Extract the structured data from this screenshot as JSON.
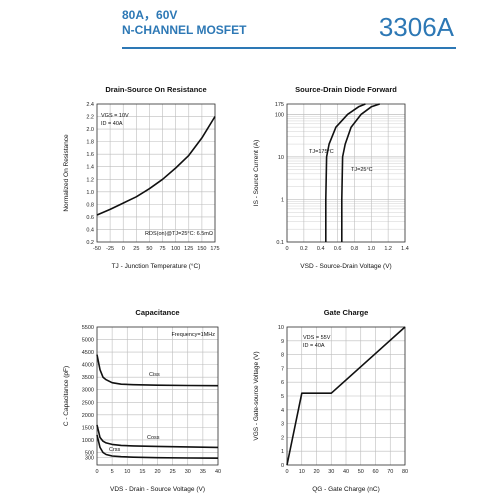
{
  "header": {
    "rating": "80A，60V",
    "type": "N-CHANNEL MOSFET",
    "part_number": "3306A",
    "accent": "#2d78b5"
  },
  "chart_data": [
    {
      "type": "line",
      "title": "Drain-Source On Resistance",
      "xlabel": "TJ - Junction Temperature (°C)",
      "ylabel": "Normalized On Resistance",
      "xlim": [
        -50,
        175
      ],
      "ylim": [
        0.2,
        2.4
      ],
      "xticks": [
        "-50",
        "-25",
        "0",
        "25",
        "50",
        "75",
        "100",
        "125",
        "150",
        "175"
      ],
      "yticks": [
        "0.2",
        "0.4",
        "0.6",
        "0.8",
        "1.0",
        "1.2",
        "1.4",
        "1.6",
        "1.8",
        "2.0",
        "2.2",
        "2.4"
      ],
      "annotations": [
        "VGS = 10V",
        "ID = 40A",
        "RDS(on)@TJ=25°C: 6.5mΩ"
      ],
      "series": [
        {
          "x": [
            -50,
            -25,
            0,
            25,
            50,
            75,
            100,
            125,
            150,
            175
          ],
          "y": [
            0.63,
            0.72,
            0.82,
            0.92,
            1.05,
            1.2,
            1.38,
            1.58,
            1.86,
            2.2
          ]
        }
      ]
    },
    {
      "type": "line",
      "title": "Source-Drain Diode Forward",
      "xlabel": "VSD - Source-Drain Voltage (V)",
      "ylabel": "IS - Source Current (A)",
      "xlim": [
        0,
        1.4
      ],
      "ylim": [
        0.1,
        175
      ],
      "yscale": "log",
      "xticks": [
        "0",
        "0.2",
        "0.4",
        "0.6",
        "0.8",
        "1.0",
        "1.2",
        "1.4"
      ],
      "yticks": [
        "0.1",
        "1",
        "10",
        "100",
        "175"
      ],
      "series": [
        {
          "name": "TJ=175°C",
          "x": [
            0.46,
            0.46,
            0.47,
            0.5,
            0.58,
            0.72,
            0.85,
            0.93
          ],
          "y": [
            0.1,
            1,
            10,
            20,
            50,
            100,
            150,
            175
          ]
        },
        {
          "name": "TJ=25°C",
          "x": [
            0.65,
            0.65,
            0.66,
            0.69,
            0.76,
            0.88,
            1.0,
            1.1
          ],
          "y": [
            0.1,
            1,
            10,
            20,
            50,
            100,
            150,
            175
          ]
        }
      ]
    },
    {
      "type": "line",
      "title": "Capacitance",
      "xlabel": "VDS - Drain - Source Voltage (V)",
      "ylabel": "C - Capacitance (pF)",
      "xlim": [
        0,
        40
      ],
      "ylim": [
        0,
        5500
      ],
      "xticks": [
        "0",
        "5",
        "10",
        "15",
        "20",
        "25",
        "30",
        "35",
        "40"
      ],
      "yticks": [
        "300",
        "500",
        "1000",
        "1500",
        "2000",
        "2500",
        "3000",
        "3500",
        "4000",
        "4500",
        "5000",
        "5500"
      ],
      "annotations": [
        "Frequency=1MHz"
      ],
      "series": [
        {
          "name": "Ciss",
          "x": [
            0,
            1,
            2,
            3,
            5,
            8,
            12,
            20,
            30,
            40
          ],
          "y": [
            4400,
            3800,
            3500,
            3400,
            3280,
            3220,
            3200,
            3180,
            3170,
            3160
          ]
        },
        {
          "name": "Coss",
          "x": [
            0,
            1,
            2,
            3,
            5,
            8,
            12,
            20,
            30,
            40
          ],
          "y": [
            1600,
            1100,
            950,
            880,
            820,
            780,
            760,
            740,
            720,
            700
          ]
        },
        {
          "name": "Crss",
          "x": [
            0,
            1,
            2,
            3,
            5,
            8,
            12,
            20,
            30,
            40
          ],
          "y": [
            1200,
            700,
            500,
            420,
            360,
            330,
            310,
            290,
            280,
            270
          ]
        }
      ]
    },
    {
      "type": "line",
      "title": "Gate Charge",
      "xlabel": "QG - Gate Charge (nC)",
      "ylabel": "VGS - Gate-source Voltage (V)",
      "xlim": [
        0,
        80
      ],
      "ylim": [
        0,
        10
      ],
      "xticks": [
        "0",
        "10",
        "20",
        "30",
        "40",
        "50",
        "60",
        "70",
        "80"
      ],
      "yticks": [
        "0",
        "1",
        "2",
        "3",
        "4",
        "5",
        "6",
        "7",
        "8",
        "9",
        "10"
      ],
      "annotations": [
        "VDS = 55V",
        "ID = 40A"
      ],
      "series": [
        {
          "x": [
            0,
            10,
            30,
            80
          ],
          "y": [
            0,
            5.2,
            5.2,
            10
          ]
        }
      ]
    }
  ]
}
